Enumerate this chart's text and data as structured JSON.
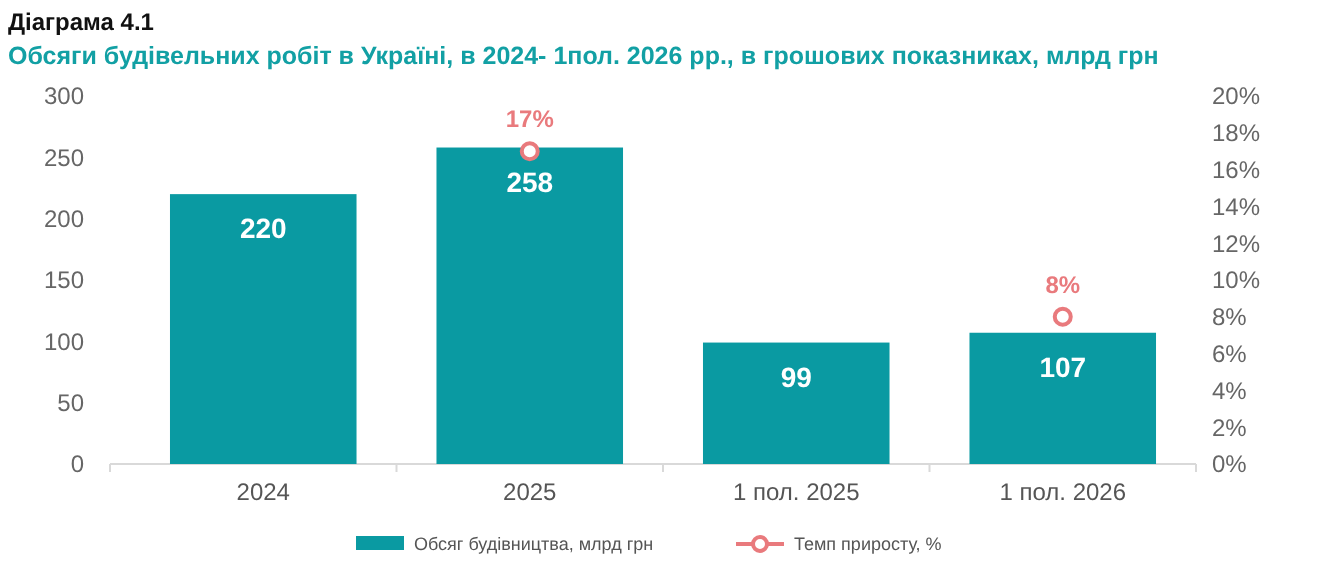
{
  "chart_data": {
    "type": "bar",
    "title": "Діаграма 4.1",
    "subtitle": "Обсяги будівельних робіт в Україні, в 2024- 1пол. 2026 рр., в грошових показниках, млрд грн",
    "categories": [
      "2024",
      "2025",
      "1 пол. 2025",
      "1 пол. 2026"
    ],
    "series": [
      {
        "name": "Обсяг будівництва, млрд грн",
        "color": "#0a9aa2",
        "values": [
          220,
          258,
          99,
          107
        ],
        "value_labels": [
          "220",
          "258",
          "99",
          "107"
        ]
      },
      {
        "name": "Темп приросту, %",
        "type": "scatter",
        "axis": "y2",
        "color": "#e97a7d",
        "values": [
          null,
          17,
          null,
          8
        ],
        "value_labels": [
          null,
          "17%",
          null,
          "8%"
        ],
        "marker": "circle"
      }
    ],
    "ylim": [
      0,
      300
    ],
    "yticks": [
      0,
      50,
      100,
      150,
      200,
      250,
      300
    ],
    "y2lim": [
      0,
      20
    ],
    "y2ticks": [
      {
        "value": 0,
        "label": "0%"
      },
      {
        "value": 2,
        "label": "2%"
      },
      {
        "value": 4,
        "label": "4%"
      },
      {
        "value": 6,
        "label": "6%"
      },
      {
        "value": 8,
        "label": "8%"
      },
      {
        "value": 10,
        "label": "10%"
      },
      {
        "value": 12,
        "label": "12%"
      },
      {
        "value": 14,
        "label": "14%"
      },
      {
        "value": 16,
        "label": "16%"
      },
      {
        "value": 18,
        "label": "18%"
      },
      {
        "value": 20,
        "label": "20%"
      }
    ],
    "grid": false,
    "legend": "bottom"
  }
}
